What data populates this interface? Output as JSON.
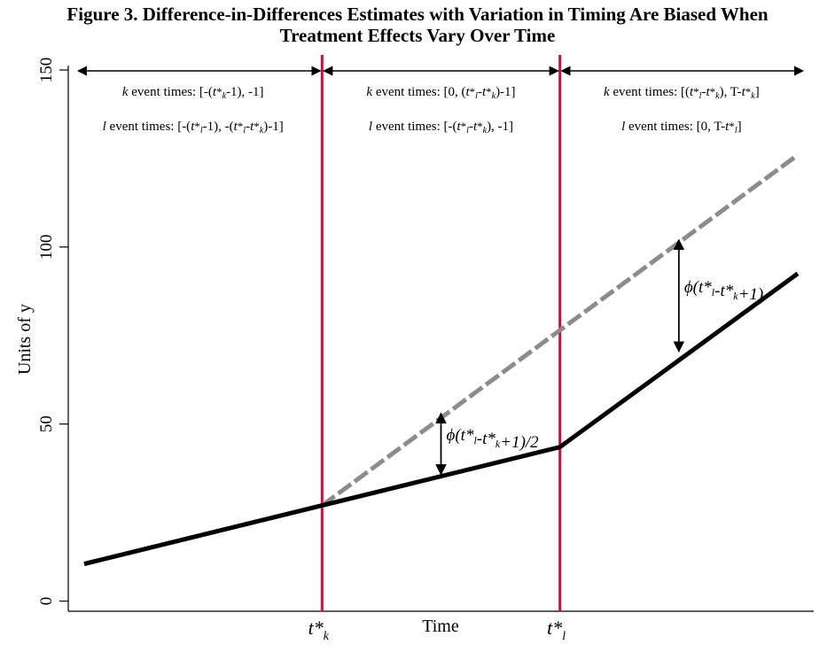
{
  "title_line1": "Figure 3. Difference-in-Differences Estimates with Variation in Timing Are Biased When",
  "title_line2": "Treatment Effects Vary Over Time",
  "chart_data": {
    "type": "line",
    "xlabel": "Time",
    "ylabel": "Units of y",
    "ylim": [
      0,
      150
    ],
    "yticks": [
      0,
      50,
      100,
      150
    ],
    "xlim": [
      0,
      30
    ],
    "grid": false,
    "x_markers": [
      {
        "label_main": "t*",
        "label_sub": "k",
        "x": 10
      },
      {
        "label_main": "t*",
        "label_sub": "l",
        "x": 20
      }
    ],
    "series": [
      {
        "style": "dashed-gray",
        "color": "#8c8c8c",
        "x": [
          0,
          10,
          30
        ],
        "y": [
          10.5,
          27,
          126
        ]
      },
      {
        "style": "solid-black",
        "color": "#000000",
        "x": [
          0,
          10,
          20,
          30
        ],
        "y": [
          10.5,
          27,
          43.5,
          92.5
        ]
      }
    ],
    "vline_color": "#c0163a",
    "region_annotations": [
      {
        "k": [
          "k",
          " event times: [-(",
          "t",
          "*",
          "k",
          "-1), -1]"
        ],
        "l": [
          "l",
          " event times: [-(",
          "t",
          "*",
          "l",
          "-1), -(",
          "t",
          "*",
          "l",
          "-",
          "t",
          "*",
          "k",
          ")-1]"
        ]
      },
      {
        "k": [
          "k",
          " event times: [0, (",
          "t",
          "*",
          "l",
          "-",
          "t",
          "*",
          "k",
          ")-1]"
        ],
        "l": [
          "l",
          " event times: [-(",
          "t",
          "*",
          "l",
          "-",
          "t",
          "*",
          "k",
          "), -1]"
        ]
      },
      {
        "k": [
          "k",
          " event times: [(",
          "t",
          "*",
          "l",
          "-",
          "t",
          "*",
          "k",
          "), T-",
          "t",
          "*",
          "k",
          "]"
        ],
        "l": [
          "l",
          " event times: [0, T-",
          "t",
          "*",
          "l",
          "]"
        ]
      }
    ],
    "difference_annotations": [
      {
        "x": 15,
        "y_top": 53.5,
        "y_bottom": 35.3,
        "label": "ϕ(t*l-t*k+1)/2"
      },
      {
        "x": 25,
        "y_top": 102.5,
        "y_bottom": 70,
        "label": "ϕ(t*l-t*k+1)"
      }
    ]
  }
}
